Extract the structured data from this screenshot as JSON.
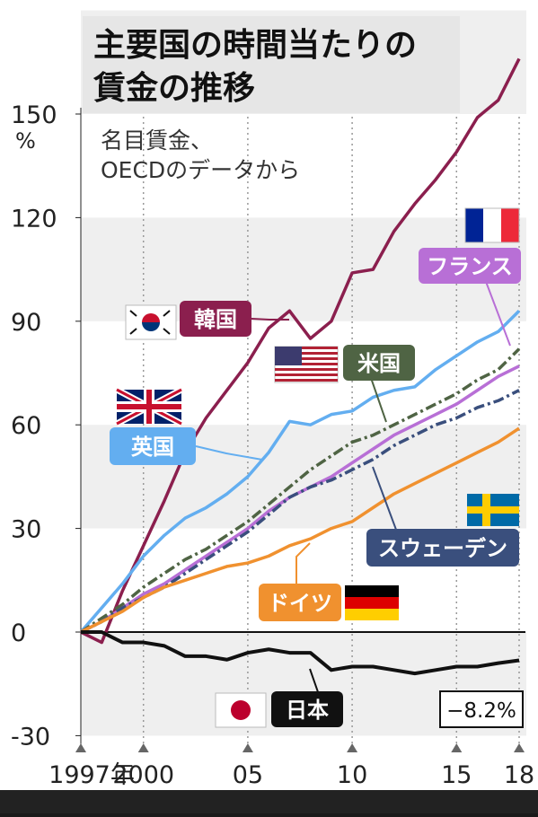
{
  "header": {
    "title_line1": "主要国の時間当たりの",
    "title_line2": "賃金の推移"
  },
  "note": {
    "line1": "名目賃金、",
    "line2": "OECDのデータから"
  },
  "colors": {
    "korea": "#8b1f4e",
    "uk": "#63aef0",
    "us": "#4f6444",
    "france": "#b86fd6",
    "sweden": "#3a4f7d",
    "germany": "#f0912f",
    "japan": "#111111"
  },
  "chart_data": {
    "type": "line",
    "title": "主要国の時間当たりの賃金の推移",
    "subtitle": "名目賃金、OECDのデータから",
    "ylabel": "%",
    "ylim": [
      -30,
      160
    ],
    "xlim": [
      1997,
      2018
    ],
    "yticks": [
      150,
      120,
      90,
      60,
      30,
      0,
      -30
    ],
    "ytick_labels": [
      "150",
      "120",
      "90",
      "60",
      "30",
      "0",
      "-30"
    ],
    "xtick_labels": [
      {
        "x": 1997,
        "label": "1997年"
      },
      {
        "x": 2000,
        "label": "2000"
      },
      {
        "x": 2005,
        "label": "05"
      },
      {
        "x": 2010,
        "label": "10"
      },
      {
        "x": 2015,
        "label": "15"
      },
      {
        "x": 2018,
        "label": "18"
      }
    ],
    "grid": "dotted vertical lines at 2000, 2005, 2010, 2015, 2018; alternating horizontal bands",
    "x": [
      1997,
      1998,
      1999,
      2000,
      2001,
      2002,
      2003,
      2004,
      2005,
      2006,
      2007,
      2008,
      2009,
      2010,
      2011,
      2012,
      2013,
      2014,
      2015,
      2016,
      2017,
      2018
    ],
    "series": [
      {
        "name": "韓国",
        "key": "korea",
        "values": [
          0,
          -3,
          12,
          25,
          38,
          52,
          62,
          70,
          78,
          88,
          93,
          85,
          90,
          104,
          105,
          116,
          124,
          131,
          139,
          149,
          154,
          166
        ]
      },
      {
        "name": "英国",
        "key": "uk",
        "values": [
          0,
          7,
          14,
          22,
          28,
          33,
          36,
          40,
          45,
          52,
          61,
          60,
          63,
          64,
          68,
          70,
          71,
          76,
          80,
          84,
          87,
          93
        ]
      },
      {
        "name": "米国",
        "key": "us",
        "values": [
          0,
          4,
          8,
          13,
          17,
          21,
          24,
          28,
          32,
          37,
          42,
          47,
          51,
          55,
          57,
          60,
          63,
          66,
          69,
          73,
          76,
          82
        ]
      },
      {
        "name": "フランス",
        "key": "france",
        "values": [
          0,
          3,
          7,
          11,
          14,
          18,
          22,
          26,
          30,
          35,
          39,
          42,
          45,
          49,
          53,
          57,
          60,
          63,
          66,
          70,
          74,
          77
        ]
      },
      {
        "name": "スウェーデン",
        "key": "sweden",
        "values": [
          0,
          3,
          7,
          10,
          13,
          17,
          21,
          25,
          29,
          34,
          39,
          42,
          44,
          47,
          50,
          54,
          57,
          60,
          62,
          65,
          67,
          70
        ]
      },
      {
        "name": "ドイツ",
        "key": "germany",
        "values": [
          0,
          3,
          6,
          10,
          13,
          15,
          17,
          19,
          20,
          22,
          25,
          27,
          30,
          32,
          36,
          40,
          43,
          46,
          49,
          52,
          55,
          59
        ]
      },
      {
        "name": "日本",
        "key": "japan",
        "values": [
          0,
          0,
          -3,
          -3,
          -4,
          -7,
          -7,
          -8,
          -6,
          -5,
          -6,
          -6,
          -11,
          -10,
          -10,
          -11,
          -12,
          -11,
          -10,
          -10,
          -9,
          -8.2
        ]
      }
    ],
    "annotations": [
      {
        "series": "日本",
        "x": 2018,
        "text": "−8.2%"
      }
    ],
    "legend": "inline labels next to each line with country flags"
  }
}
